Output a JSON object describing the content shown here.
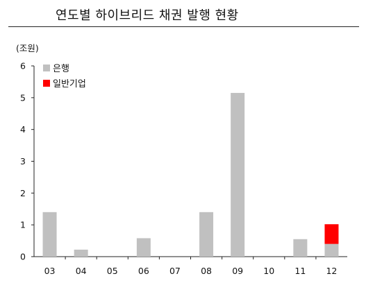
{
  "chart_data": {
    "type": "bar",
    "title": "연도별 하이브리드 채권 발행 현황",
    "unit": "(조원)",
    "categories": [
      "03",
      "04",
      "05",
      "06",
      "07",
      "08",
      "09",
      "10",
      "11",
      "12"
    ],
    "series": [
      {
        "name": "은행",
        "color": "#c0c0c0",
        "values": [
          1.4,
          0.22,
          0,
          0.58,
          0,
          1.4,
          5.15,
          0,
          0.55,
          0.4
        ]
      },
      {
        "name": "일반기업",
        "color": "#ff0000",
        "values": [
          0,
          0,
          0,
          0,
          0,
          0,
          0,
          0,
          0,
          0.62
        ]
      }
    ],
    "stacked": true,
    "ylim": [
      0,
      6
    ],
    "yticks": [
      0,
      1,
      2,
      3,
      4,
      5,
      6
    ],
    "grid": false,
    "legend": "top-left"
  }
}
